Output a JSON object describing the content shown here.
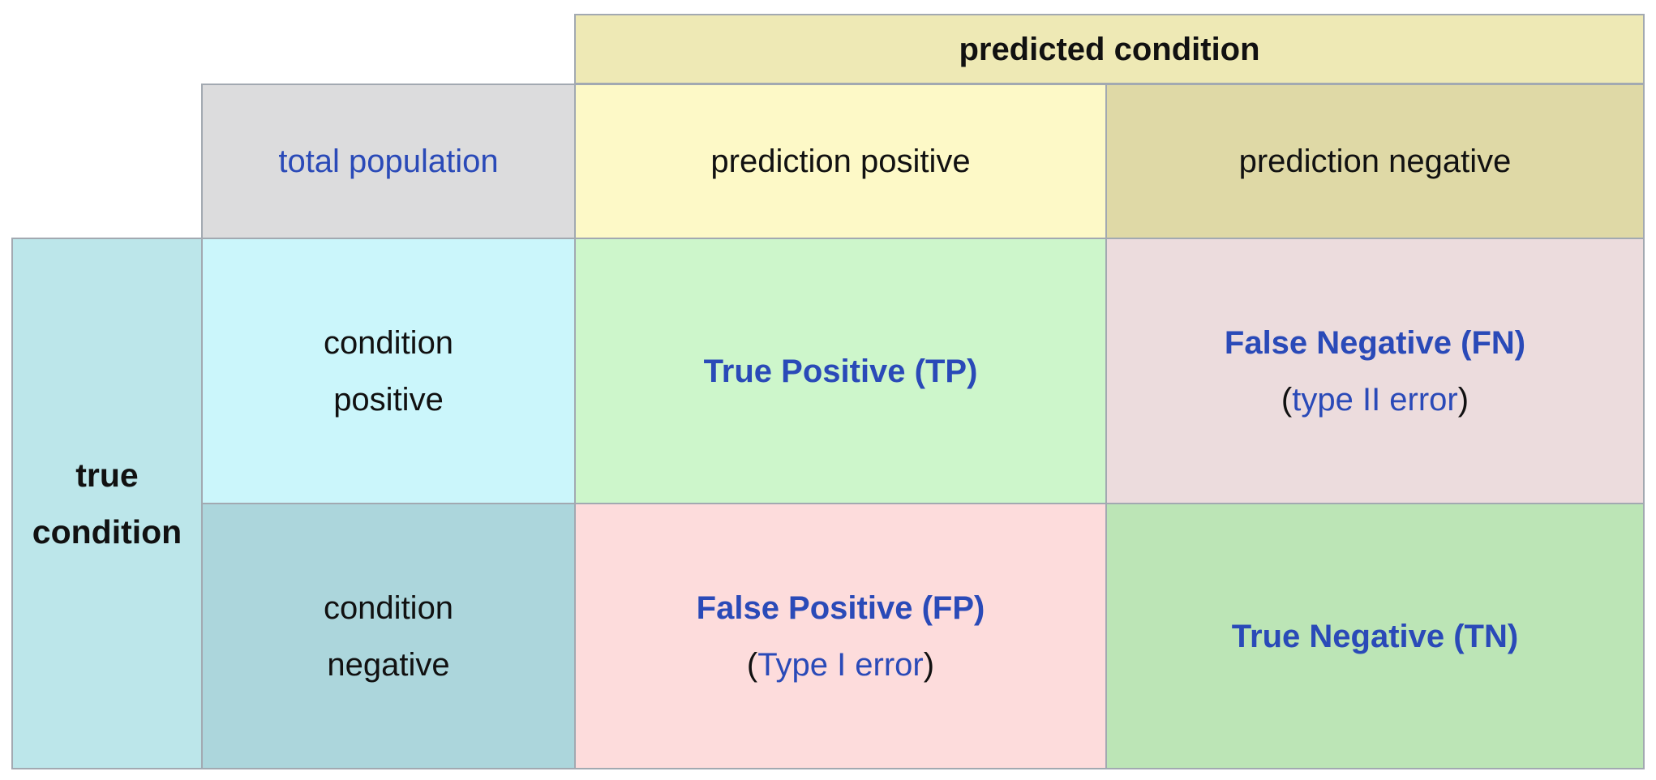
{
  "header": {
    "predicted_condition": "predicted condition",
    "total_population": "total population",
    "prediction_positive": "prediction positive",
    "prediction_negative": "prediction negative"
  },
  "rows": {
    "true_condition_line1": "true",
    "true_condition_line2": "condition",
    "condition_positive_line1": "condition",
    "condition_positive_line2": "positive",
    "condition_negative_line1": "condition",
    "condition_negative_line2": "negative"
  },
  "cells": {
    "tp": "True Positive (TP)",
    "fn": "False Negative (FN)",
    "fn_note": "type II error",
    "fp": "False Positive (FP)",
    "fp_note": "Type I error",
    "tn": "True Negative (TN)",
    "open_paren": "(",
    "close_paren": ")"
  },
  "colors": {
    "link": "#2a4ab8",
    "predicted_header": "#eee9b5",
    "total_population": "#dcdcdd",
    "prediction_positive": "#fdf9c7",
    "prediction_negative": "#dfd9a6",
    "true_condition": "#bce6ea",
    "condition_positive": "#cbf6fb",
    "condition_negative": "#acd6dc",
    "tp": "#cdf6cb",
    "fn": "#ecdcdd",
    "fp": "#fddcdc",
    "tn": "#bce5b6"
  }
}
